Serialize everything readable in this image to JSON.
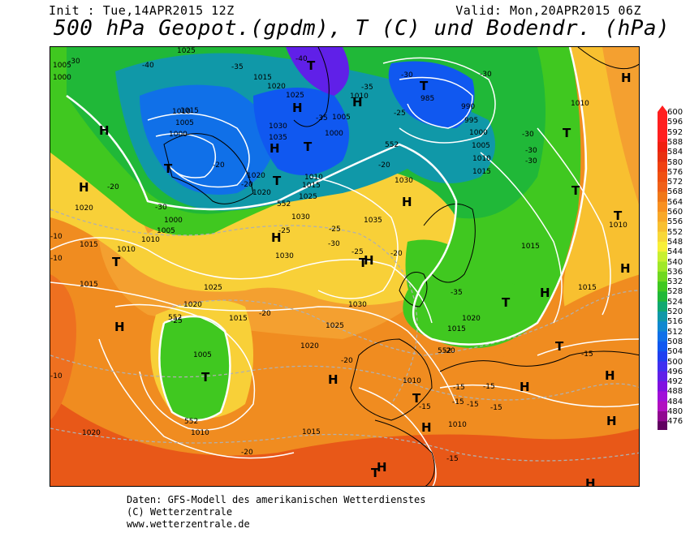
{
  "header": {
    "init": "Init : Tue,14APR2015 12Z",
    "valid": "Valid: Mon,20APR2015 06Z",
    "title": "500 hPa Geopot.(gpdm), T (C) und Bodendr. (hPa)"
  },
  "legend": {
    "values": [
      "600",
      "596",
      "592",
      "588",
      "584",
      "580",
      "576",
      "572",
      "568",
      "564",
      "560",
      "556",
      "552",
      "548",
      "544",
      "540",
      "536",
      "532",
      "528",
      "524",
      "520",
      "516",
      "512",
      "508",
      "504",
      "500",
      "496",
      "492",
      "488",
      "484",
      "480",
      "476"
    ],
    "colors": [
      "#ff1f1f",
      "#ff1f1f",
      "#ff1f1f",
      "#f02010",
      "#e83010",
      "#f04010",
      "#f05010",
      "#f06018",
      "#f07818",
      "#f89020",
      "#f8a828",
      "#f8c030",
      "#f8d838",
      "#f8f038",
      "#c8f030",
      "#a0e828",
      "#70d820",
      "#40c820",
      "#20b838",
      "#10a870",
      "#1098a8",
      "#1088d0",
      "#1070e8",
      "#1058f0",
      "#2040f0",
      "#4030f0",
      "#6020e8",
      "#8010e0",
      "#a010d8",
      "#b010c0",
      "#900890",
      "#600060"
    ]
  },
  "map": {
    "highs": [
      "H",
      "H",
      "H",
      "H",
      "H",
      "H",
      "H",
      "H",
      "H",
      "H",
      "H",
      "H",
      "H",
      "H",
      "H",
      "H",
      "H",
      "H",
      "H"
    ],
    "lows": [
      "T",
      "T",
      "T",
      "T",
      "T",
      "T",
      "T",
      "T",
      "T",
      "T",
      "T",
      "T",
      "T",
      "T",
      "T",
      "T"
    ],
    "pressure_labels": [
      "1005",
      "1000",
      "1025",
      "1015",
      "1020",
      "1010",
      "1035",
      "1030",
      "985",
      "990",
      "995",
      "1000",
      "1005",
      "1010",
      "1015",
      "1020",
      "1025",
      "1030",
      "1035",
      "1010",
      "1015",
      "1020",
      "1025",
      "1030",
      "1015",
      "1020",
      "1005",
      "1010",
      "1015",
      "1020",
      "1010",
      "1010",
      "1015",
      "1020",
      "1030"
    ],
    "temp_labels": [
      "-30",
      "-40",
      "-35",
      "-40",
      "-35",
      "-30",
      "-25",
      "-20",
      "-20",
      "-20",
      "-25",
      "-30",
      "-25",
      "-20",
      "-20",
      "-25",
      "-20",
      "-15",
      "-15",
      "-15",
      "-15",
      "-15",
      "-10",
      "-10",
      "-15",
      "-20",
      "-20",
      "-35",
      "-30",
      "-30"
    ],
    "geopot_labels": [
      "552",
      "552",
      "552",
      "552",
      "552"
    ]
  },
  "footer": {
    "line1": "Daten: GFS-Modell des amerikanischen Wetterdienstes",
    "line2": "(C) Wetterzentrale",
    "line3": "www.wetterzentrale.de"
  }
}
